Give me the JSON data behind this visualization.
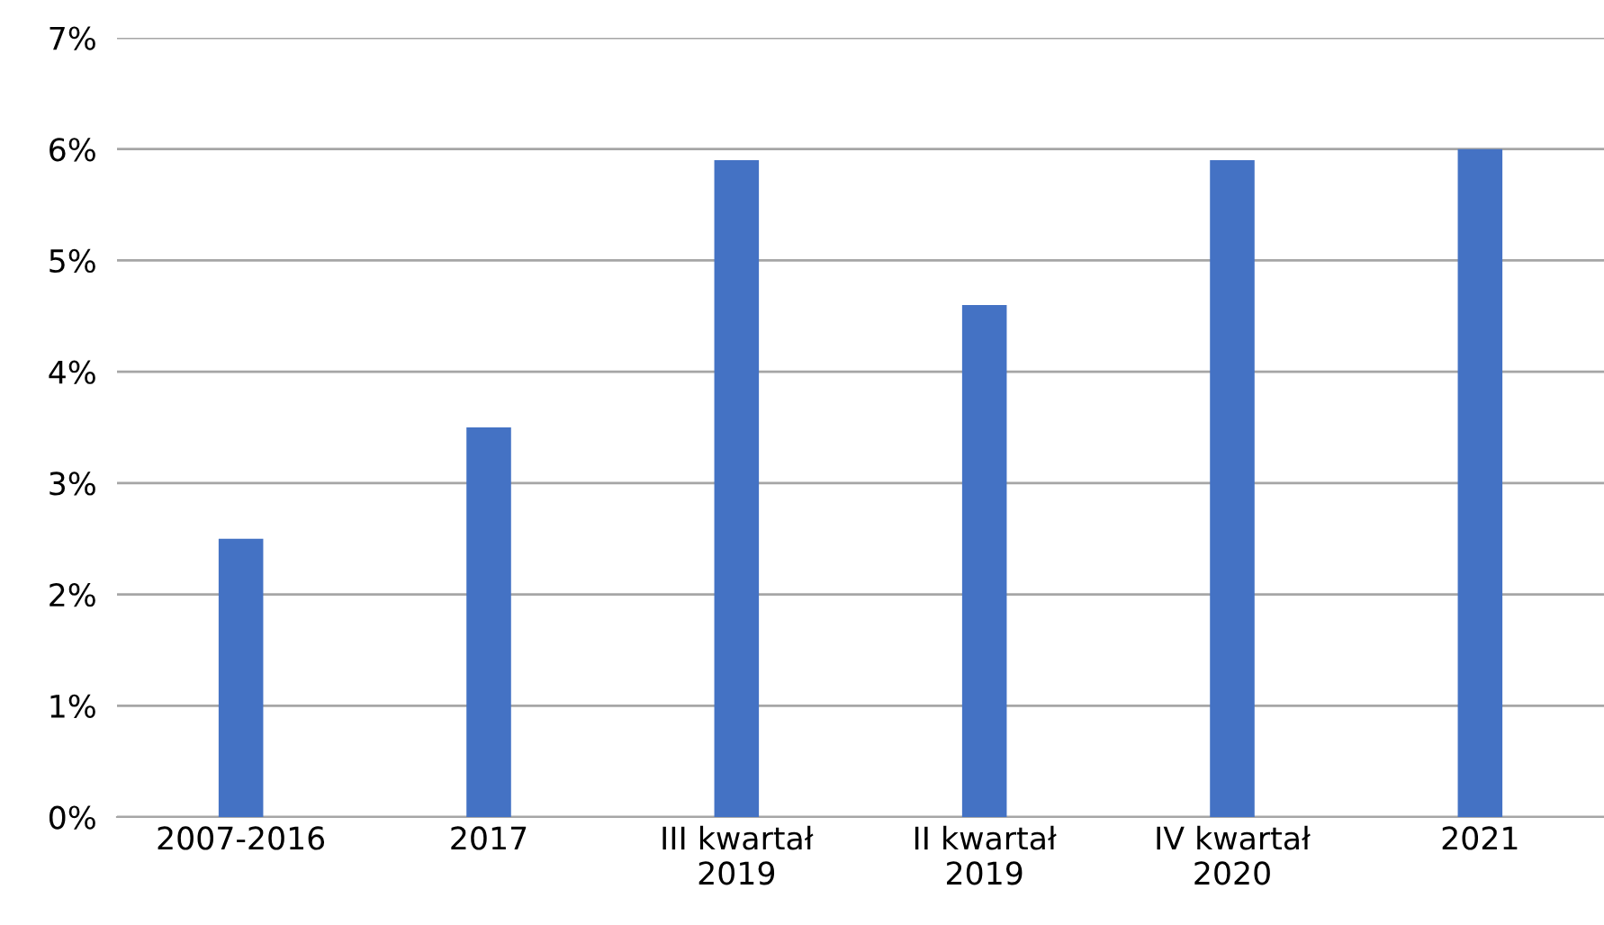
{
  "chart_data": {
    "type": "bar",
    "categories": [
      "2007-2016",
      "2017",
      "III kwartał\n2019",
      "II kwartał\n2019",
      "IV kwartał\n2020",
      "2021"
    ],
    "values": [
      2.5,
      3.5,
      5.9,
      4.6,
      5.9,
      6.0
    ],
    "color": "#4472c4",
    "ylim": [
      0,
      7
    ],
    "yticks": [
      {
        "value": 0,
        "label": "0%"
      },
      {
        "value": 1,
        "label": "1%"
      },
      {
        "value": 2,
        "label": "2%"
      },
      {
        "value": 3,
        "label": "3%"
      },
      {
        "value": 4,
        "label": "4%"
      },
      {
        "value": 5,
        "label": "5%"
      },
      {
        "value": 6,
        "label": "6%"
      },
      {
        "value": 7,
        "label": "7%"
      }
    ],
    "grid": "y",
    "legend": false
  }
}
